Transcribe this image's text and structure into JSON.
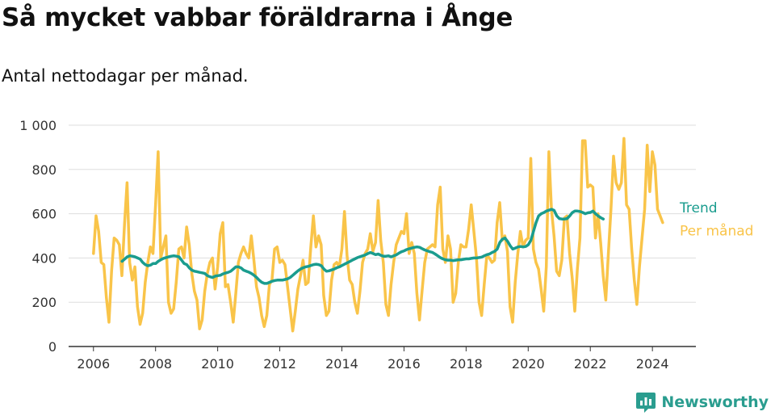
{
  "title": "Så mycket vabbar föräldrarna i Ånge",
  "subtitle": "Antal nettodagar per månad.",
  "brand": {
    "name": "Newsworthy",
    "icon": "bar-chart-logo-icon"
  },
  "colors": {
    "monthly": "#f9c449",
    "trend": "#1a9c8e",
    "grid": "#dddddd",
    "axis": "#333333",
    "brand": "#2a9d8f"
  },
  "chart_data": {
    "type": "line",
    "x_unit": "year (decimal)",
    "xlim": [
      2005.2,
      2025.4
    ],
    "ylim": [
      0,
      1000
    ],
    "x_ticks": [
      2006,
      2008,
      2010,
      2012,
      2014,
      2016,
      2018,
      2020,
      2022,
      2024
    ],
    "x_tick_labels": [
      "2006",
      "2008",
      "2010",
      "2012",
      "2014",
      "2016",
      "2018",
      "2020",
      "2022",
      "2024"
    ],
    "y_ticks": [
      0,
      200,
      400,
      600,
      800,
      1000
    ],
    "y_tick_labels": [
      "0",
      "200",
      "400",
      "600",
      "800",
      "1 000"
    ],
    "grid": true,
    "legend": "direct labels at line ends (right)",
    "series": [
      {
        "name": "Per månad",
        "color": "#f9c449",
        "x_start": 2006.0,
        "x_step": 0.08333,
        "values": [
          420,
          590,
          520,
          380,
          370,
          220,
          110,
          340,
          490,
          480,
          460,
          320,
          550,
          740,
          380,
          300,
          360,
          180,
          100,
          150,
          290,
          380,
          450,
          420,
          640,
          880,
          400,
          450,
          500,
          200,
          150,
          170,
          290,
          440,
          450,
          400,
          540,
          460,
          330,
          250,
          210,
          80,
          120,
          250,
          330,
          380,
          400,
          260,
          360,
          510,
          560,
          270,
          280,
          200,
          110,
          240,
          380,
          420,
          450,
          420,
          400,
          500,
          390,
          270,
          220,
          140,
          90,
          140,
          280,
          300,
          440,
          450,
          380,
          390,
          370,
          270,
          170,
          70,
          160,
          260,
          320,
          390,
          280,
          290,
          450,
          590,
          450,
          500,
          460,
          230,
          140,
          160,
          300,
          370,
          380,
          360,
          440,
          610,
          410,
          300,
          280,
          200,
          150,
          250,
          380,
          420,
          440,
          510,
          430,
          470,
          660,
          480,
          380,
          190,
          140,
          280,
          380,
          460,
          490,
          520,
          510,
          600,
          420,
          470,
          420,
          240,
          120,
          250,
          380,
          440,
          450,
          460,
          450,
          640,
          720,
          440,
          380,
          500,
          440,
          200,
          240,
          380,
          460,
          450,
          450,
          530,
          640,
          520,
          400,
          200,
          140,
          280,
          410,
          400,
          380,
          390,
          560,
          650,
          480,
          500,
          430,
          180,
          110,
          290,
          420,
          520,
          450,
          480,
          490,
          850,
          440,
          380,
          350,
          260,
          160,
          360,
          880,
          620,
          500,
          340,
          320,
          390,
          580,
          590,
          420,
          310,
          160,
          350,
          490,
          930,
          930,
          720,
          730,
          720,
          490,
          600,
          470,
          320,
          210,
          420,
          620,
          860,
          740,
          710,
          740,
          940,
          640,
          620,
          440,
          300,
          190,
          360,
          490,
          620,
          910,
          700,
          880,
          820,
          620,
          590,
          560
        ]
      },
      {
        "name": "Trend",
        "color": "#1a9c8e",
        "x_start": 2006.92,
        "x_step": 0.08333,
        "values": [
          385,
          395,
          405,
          410,
          408,
          405,
          400,
          395,
          380,
          370,
          365,
          368,
          375,
          375,
          385,
          392,
          398,
          402,
          405,
          408,
          410,
          408,
          405,
          390,
          375,
          370,
          355,
          345,
          340,
          338,
          335,
          333,
          330,
          320,
          315,
          312,
          318,
          320,
          322,
          328,
          332,
          335,
          340,
          350,
          360,
          360,
          355,
          345,
          340,
          336,
          330,
          322,
          312,
          300,
          290,
          285,
          285,
          290,
          295,
          298,
          300,
          300,
          300,
          303,
          306,
          312,
          322,
          332,
          342,
          350,
          356,
          360,
          362,
          366,
          370,
          372,
          370,
          365,
          350,
          340,
          342,
          346,
          350,
          356,
          360,
          366,
          372,
          378,
          384,
          390,
          396,
          402,
          406,
          410,
          414,
          420,
          425,
          420,
          415,
          418,
          412,
          408,
          408,
          410,
          405,
          410,
          414,
          422,
          428,
          432,
          438,
          442,
          445,
          448,
          450,
          448,
          442,
          436,
          432,
          428,
          425,
          418,
          410,
          402,
          396,
          392,
          390,
          390,
          388,
          390,
          392,
          392,
          394,
          396,
          396,
          398,
          400,
          400,
          402,
          404,
          410,
          415,
          418,
          425,
          430,
          440,
          470,
          485,
          490,
          475,
          455,
          440,
          445,
          450,
          452,
          450,
          452,
          460,
          480,
          520,
          560,
          590,
          600,
          605,
          612,
          616,
          620,
          615,
          590,
          578,
          576,
          576,
          578,
          590,
          605,
          612,
          612,
          610,
          606,
          600,
          604,
          606,
          612,
          600,
          590,
          582,
          576
        ]
      }
    ]
  }
}
